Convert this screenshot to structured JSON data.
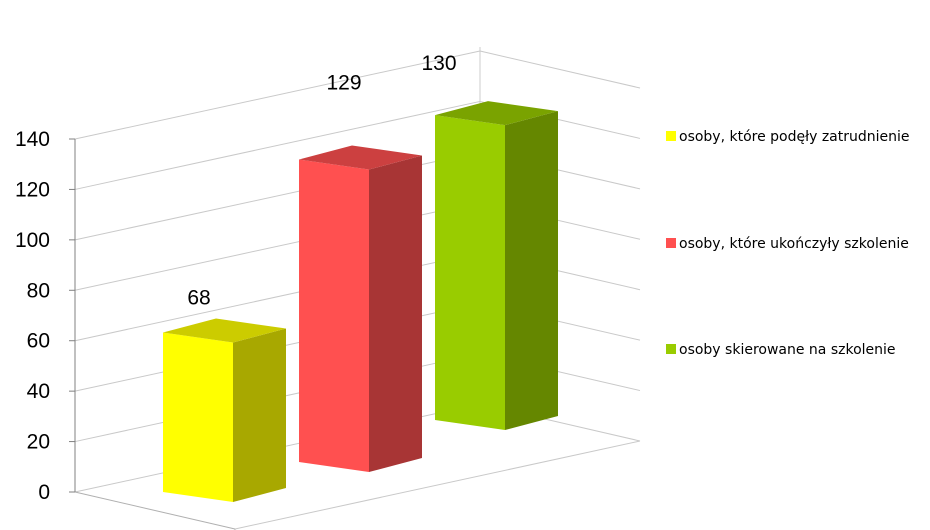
{
  "chart_data": {
    "type": "bar",
    "categories": [
      ""
    ],
    "series": [
      {
        "name": "osoby, które podęły zatrudnienie",
        "values": [
          68
        ],
        "color": "#FFFF00"
      },
      {
        "name": "osoby, które ukończyły szkolenie",
        "values": [
          129
        ],
        "color": "#FF5050"
      },
      {
        "name": "osoby skierowane na szkolenie",
        "values": [
          130
        ],
        "color": "#99CC00"
      }
    ],
    "ylim": [
      0,
      140
    ],
    "yticks": [
      0,
      20,
      40,
      60,
      80,
      100,
      120,
      140
    ],
    "xlabel": "",
    "ylabel": "",
    "grid": true,
    "legend_position": "right",
    "three_d": true
  }
}
